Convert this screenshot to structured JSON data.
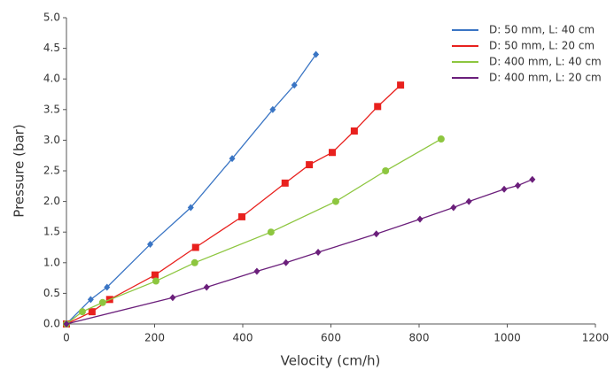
{
  "chart_data": {
    "type": "line",
    "x_label": "Velocity (cm/h)",
    "y_label": "Pressure (bar)",
    "xlim": [
      0,
      1200
    ],
    "xticks": [
      0,
      200,
      400,
      600,
      800,
      1000,
      1200
    ],
    "ylim": [
      0,
      5
    ],
    "yticks": [
      {
        "value": 0,
        "label": "0.0"
      },
      {
        "value": 0.5,
        "label": "0.5"
      },
      {
        "value": 1,
        "label": "1.0"
      },
      {
        "value": 1.5,
        "label": "1.5"
      },
      {
        "value": 2,
        "label": "2.0"
      },
      {
        "value": 2.5,
        "label": "2.5"
      },
      {
        "value": 3,
        "label": "3.0"
      },
      {
        "value": 3.5,
        "label": "3.5"
      },
      {
        "value": 4,
        "label": "4.0"
      },
      {
        "value": 4.5,
        "label": "4.5"
      },
      {
        "value": 5,
        "label": "5.0"
      }
    ],
    "grid": false,
    "legend": "top-right",
    "series": [
      {
        "name": "D: 50 mm, L: 40 cm",
        "color": "#3a75c4",
        "marker": "diamond",
        "x": [
          0,
          55,
          92,
          190,
          282,
          376,
          468,
          517,
          566
        ],
        "values": [
          0,
          0.4,
          0.6,
          1.3,
          1.9,
          2.7,
          3.5,
          3.9,
          4.4
        ]
      },
      {
        "name": "D: 50 mm, L: 20 cm",
        "color": "#e8211e",
        "marker": "square",
        "x": [
          0,
          58,
          98,
          201,
          293,
          398,
          496,
          551,
          603,
          653,
          706,
          758
        ],
        "values": [
          0,
          0.2,
          0.4,
          0.8,
          1.25,
          1.75,
          2.3,
          2.6,
          2.8,
          3.15,
          3.55,
          3.9
        ]
      },
      {
        "name": "D: 400 mm, L: 40 cm",
        "color": "#8dc63f",
        "marker": "circle",
        "x": [
          0,
          36,
          82,
          203,
          291,
          464,
          611,
          724,
          850
        ],
        "values": [
          0,
          0.2,
          0.35,
          0.7,
          1.0,
          1.5,
          2.0,
          2.5,
          3.02
        ]
      },
      {
        "name": "D: 400 mm, L: 20 cm",
        "color": "#6b1f7b",
        "marker": "diamond",
        "x": [
          0,
          241,
          318,
          432,
          498,
          571,
          703,
          802,
          878,
          913,
          993,
          1024,
          1057
        ],
        "values": [
          0,
          0.43,
          0.6,
          0.86,
          1.0,
          1.17,
          1.47,
          1.71,
          1.9,
          2.0,
          2.2,
          2.26,
          2.36
        ]
      }
    ]
  }
}
